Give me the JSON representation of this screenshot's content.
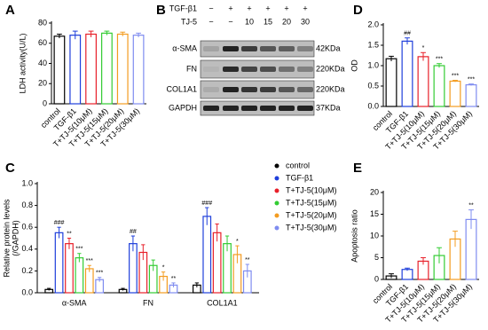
{
  "chart_data": [
    {
      "type": "bar",
      "label": "A",
      "ylabel": "LDH activity(U/L)",
      "categories": [
        "control",
        "TGF-β1",
        "T+TJ-5(10μM)",
        "T+TJ-5(15μM)",
        "T+TJ-5(20μM)",
        "T+TJ-5(30μM)"
      ],
      "values": [
        67,
        68,
        69,
        70,
        69,
        68
      ],
      "errors": [
        2,
        4,
        3,
        2,
        2,
        2
      ],
      "colors": [
        "#000000",
        "#1f3fdb",
        "#e8202a",
        "#33cc33",
        "#f39c21",
        "#7f8cf0"
      ],
      "ylim": [
        0,
        80
      ],
      "yticks": [
        0,
        20,
        40,
        60,
        80
      ]
    },
    {
      "type": "grouped_bar",
      "label": "C",
      "ylabel": [
        "Relative protein levels",
        "(/GAPDH)"
      ],
      "categories": [
        "α-SMA",
        "FN",
        "COL1A1"
      ],
      "series": [
        {
          "name": "control",
          "color": "#000000",
          "values": [
            0.03,
            0.03,
            0.07
          ],
          "errors": [
            0.01,
            0.01,
            0.02
          ],
          "annotations": [
            null,
            null,
            null
          ]
        },
        {
          "name": "TGF-β1",
          "color": "#1f3fdb",
          "values": [
            0.55,
            0.45,
            0.7
          ],
          "errors": [
            0.05,
            0.07,
            0.08
          ],
          "annotations": [
            "###",
            "##",
            "###"
          ]
        },
        {
          "name": "T+TJ-5(10μM)",
          "color": "#e8202a",
          "values": [
            0.45,
            0.37,
            0.55
          ],
          "errors": [
            0.05,
            0.07,
            0.08
          ],
          "annotations": [
            "**",
            null,
            null
          ]
        },
        {
          "name": "T+TJ-5(15μM)",
          "color": "#33cc33",
          "values": [
            0.32,
            0.25,
            0.45
          ],
          "errors": [
            0.04,
            0.05,
            0.07
          ],
          "annotations": [
            "***",
            null,
            null
          ]
        },
        {
          "name": "T+TJ-5(20μM)",
          "color": "#f39c21",
          "values": [
            0.22,
            0.15,
            0.35
          ],
          "errors": [
            0.03,
            0.04,
            0.08
          ],
          "annotations": [
            "***",
            "*",
            "*"
          ]
        },
        {
          "name": "T+TJ-5(30μM)",
          "color": "#7f8cf0",
          "values": [
            0.12,
            0.07,
            0.2
          ],
          "errors": [
            0.02,
            0.02,
            0.06
          ],
          "annotations": [
            "***",
            "**",
            "**"
          ]
        }
      ],
      "ylim": [
        0,
        1.0
      ],
      "yticks": [
        {
          "value": 0,
          "label": "0.0"
        },
        {
          "value": 0.2,
          "label": "0.2"
        },
        {
          "value": 0.4,
          "label": "0.4"
        },
        {
          "value": 0.6,
          "label": "0.6"
        },
        {
          "value": 0.8,
          "label": "0.8"
        },
        {
          "value": 1,
          "label": "1.0"
        }
      ]
    },
    {
      "type": "bar",
      "label": "D",
      "ylabel": "OD",
      "categories": [
        "control",
        "TGF-β1",
        "T+TJ-5(10μM)",
        "T+TJ-5(15μM)",
        "T+TJ-5(20μM)",
        "T+TJ-5(30μM)"
      ],
      "values": [
        1.17,
        1.6,
        1.22,
        1.0,
        0.62,
        0.53
      ],
      "errors": [
        0.06,
        0.08,
        0.1,
        0.05,
        0.02,
        0.02
      ],
      "annotations": [
        null,
        "##",
        "*",
        "***",
        "***",
        "***"
      ],
      "colors": [
        "#000000",
        "#1f3fdb",
        "#e8202a",
        "#33cc33",
        "#f39c21",
        "#7f8cf0"
      ],
      "ylim": [
        0,
        2.0
      ],
      "yticks": [
        {
          "value": 0,
          "label": "0.0"
        },
        {
          "value": 0.5,
          "label": "0.5"
        },
        {
          "value": 1,
          "label": "1.0"
        },
        {
          "value": 1.5,
          "label": "1.5"
        },
        {
          "value": 2,
          "label": "2.0"
        }
      ]
    },
    {
      "type": "bar",
      "label": "E",
      "ylabel": "Apoptosis ratio",
      "categories": [
        "control",
        "TGF-β1",
        "T+TJ-5(10μM)",
        "T+TJ-5(15μM)",
        "T+TJ-5(20μM)",
        "T+TJ-5(30μM)"
      ],
      "values": [
        0.8,
        2.3,
        4.2,
        5.5,
        9.3,
        13.8
      ],
      "errors": [
        0.5,
        0.3,
        0.8,
        1.8,
        1.8,
        2.2
      ],
      "annotations": [
        null,
        null,
        null,
        null,
        null,
        "**"
      ],
      "colors": [
        "#000000",
        "#1f3fdb",
        "#e8202a",
        "#33cc33",
        "#f39c21",
        "#7f8cf0"
      ],
      "ylim": [
        0,
        20
      ],
      "yticks": [
        0,
        5,
        10,
        15,
        20
      ]
    }
  ],
  "blot": {
    "label": "B",
    "treatments": [
      {
        "name": "TGF-β1",
        "levels": [
          "−",
          "+",
          "+",
          "+",
          "+",
          "+"
        ]
      },
      {
        "name": "TJ-5",
        "levels": [
          "−",
          "−",
          "10",
          "15",
          "20",
          "30"
        ]
      }
    ],
    "rows": [
      {
        "name": "α-SMA",
        "size": "42KDa"
      },
      {
        "name": "FN",
        "size": "220KDa"
      },
      {
        "name": "COL1A1",
        "size": "220KDa"
      },
      {
        "name": "GAPDH",
        "size": "37KDa"
      }
    ]
  }
}
